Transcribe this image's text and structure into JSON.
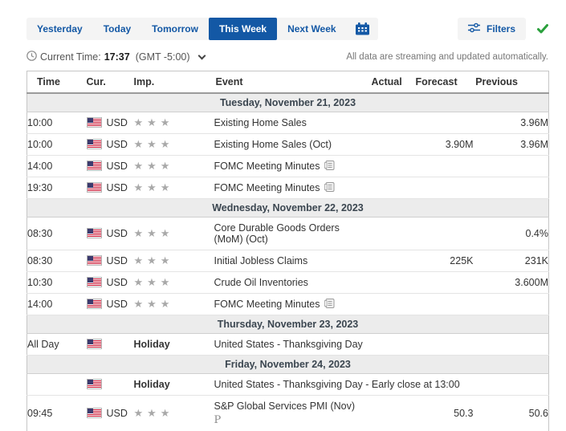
{
  "tabs": {
    "items": [
      {
        "label": "Yesterday",
        "active": false
      },
      {
        "label": "Today",
        "active": false
      },
      {
        "label": "Tomorrow",
        "active": false
      },
      {
        "label": "This Week",
        "active": true
      },
      {
        "label": "Next Week",
        "active": false
      }
    ],
    "calendar_icon": "date-picker-calendar-icon"
  },
  "filters": {
    "label": "Filters",
    "icon": "sliders-icon",
    "applied_icon": "green-check-icon"
  },
  "status": {
    "clock_icon": "clock-icon",
    "current_time_label": "Current Time:",
    "time": "17:37",
    "timezone": "(GMT -5:00)",
    "streaming_note": "All data are streaming and updated automatically."
  },
  "colors": {
    "accent_blue": "#1358a5",
    "active_tab_bg": "#1358a5",
    "green_check": "#2aa03c",
    "star_gray": "#a9a9a9",
    "day_row_bg": "#ececec",
    "flag_red": "#C8102E",
    "flag_blue": "#3C3B6E"
  },
  "table": {
    "headers": [
      "Time",
      "Cur.",
      "Imp.",
      "Event",
      "Actual",
      "Forecast",
      "Previous"
    ],
    "days": [
      {
        "label": "Tuesday, November 21, 2023",
        "rows": [
          {
            "time": "10:00",
            "currency": "USD",
            "flag": "us-flag-icon",
            "stars": 3,
            "event": "Existing Home Sales",
            "actual": "",
            "forecast": "",
            "previous": "3.96M"
          },
          {
            "time": "10:00",
            "currency": "USD",
            "flag": "us-flag-icon",
            "stars": 3,
            "event": "Existing Home Sales (Oct)",
            "actual": "",
            "forecast": "3.90M",
            "previous": "3.96M"
          },
          {
            "time": "14:00",
            "currency": "USD",
            "flag": "us-flag-icon",
            "stars": 3,
            "event": "FOMC Meeting Minutes",
            "minutes_icon": true,
            "actual": "",
            "forecast": "",
            "previous": ""
          },
          {
            "time": "19:30",
            "currency": "USD",
            "flag": "us-flag-icon",
            "stars": 3,
            "event": "FOMC Meeting Minutes",
            "minutes_icon": true,
            "actual": "",
            "forecast": "",
            "previous": ""
          }
        ]
      },
      {
        "label": "Wednesday, November 22, 2023",
        "rows": [
          {
            "time": "08:30",
            "currency": "USD",
            "flag": "us-flag-icon",
            "stars": 3,
            "event": "Core Durable Goods Orders",
            "event2": "(MoM) (Oct)",
            "actual": "",
            "forecast": "",
            "previous": "0.4%"
          },
          {
            "time": "08:30",
            "currency": "USD",
            "flag": "us-flag-icon",
            "stars": 3,
            "event": "Initial Jobless Claims",
            "actual": "",
            "forecast": "225K",
            "previous": "231K"
          },
          {
            "time": "10:30",
            "currency": "USD",
            "flag": "us-flag-icon",
            "stars": 3,
            "event": "Crude Oil Inventories",
            "actual": "",
            "forecast": "",
            "previous": "3.600M"
          },
          {
            "time": "14:00",
            "currency": "USD",
            "flag": "us-flag-icon",
            "stars": 3,
            "event": "FOMC Meeting Minutes",
            "minutes_icon": true,
            "actual": "",
            "forecast": "",
            "previous": ""
          }
        ]
      },
      {
        "label": "Thursday, November 23, 2023",
        "rows": [
          {
            "time": "All Day",
            "currency": "",
            "flag": "us-flag-icon",
            "holiday": "Holiday",
            "event": "United States - Thanksgiving Day",
            "nowrap": true,
            "actual": "",
            "forecast": "",
            "previous": ""
          }
        ]
      },
      {
        "label": "Friday, November 24, 2023",
        "rows": [
          {
            "time": "",
            "currency": "",
            "flag": "us-flag-icon",
            "holiday": "Holiday",
            "event": "United States - Thanksgiving Day - Early close at 13:00",
            "nowrap": true,
            "actual": "",
            "forecast": "",
            "previous": ""
          },
          {
            "time": "09:45",
            "currency": "USD",
            "flag": "us-flag-icon",
            "stars": 3,
            "event": "S&P Global Services PMI (Nov)",
            "prelim_marker": "P",
            "actual": "",
            "forecast": "50.3",
            "previous": "50.6"
          }
        ]
      }
    ]
  }
}
